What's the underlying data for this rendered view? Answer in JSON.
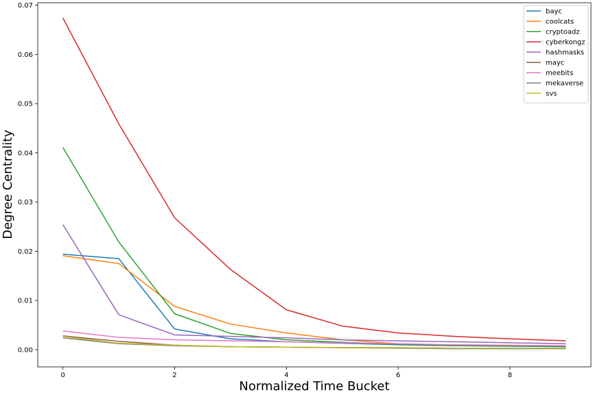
{
  "chart_data": {
    "type": "line",
    "xlabel": "Normalized Time Bucket",
    "ylabel": "Degree Centrality",
    "xlim": [
      -0.45,
      9.45
    ],
    "ylim": [
      -0.0035,
      0.0705
    ],
    "xticks": [
      0,
      2,
      4,
      6,
      8
    ],
    "xtick_labels": [
      "0",
      "2",
      "4",
      "6",
      "8"
    ],
    "yticks": [
      0.0,
      0.01,
      0.02,
      0.03,
      0.04,
      0.05,
      0.06,
      0.07
    ],
    "ytick_labels": [
      "0.00",
      "0.01",
      "0.02",
      "0.03",
      "0.04",
      "0.05",
      "0.06",
      "0.07"
    ],
    "grid": false,
    "legend_position": "top-right",
    "x": [
      0,
      1,
      2,
      3,
      4,
      5,
      6,
      7,
      8,
      9
    ],
    "series": [
      {
        "name": "bayc",
        "color": "#1f77b4",
        "values": [
          0.0194,
          0.0185,
          0.0042,
          0.0022,
          0.0016,
          0.0013,
          0.001,
          0.0008,
          0.0007,
          0.0006
        ]
      },
      {
        "name": "coolcats",
        "color": "#ff7f0e",
        "values": [
          0.0191,
          0.0175,
          0.0088,
          0.0052,
          0.0034,
          0.002,
          0.0012,
          0.0009,
          0.0008,
          0.0007
        ]
      },
      {
        "name": "cryptoadz",
        "color": "#2ca02c",
        "values": [
          0.0411,
          0.0219,
          0.0073,
          0.0033,
          0.002,
          0.0015,
          0.0011,
          0.0009,
          0.0008,
          0.0007
        ]
      },
      {
        "name": "cyberkongz",
        "color": "#d62728",
        "values": [
          0.0674,
          0.0459,
          0.0268,
          0.0163,
          0.0081,
          0.0048,
          0.0034,
          0.0027,
          0.0022,
          0.0018
        ]
      },
      {
        "name": "hashmasks",
        "color": "#9467bd",
        "values": [
          0.0254,
          0.0071,
          0.003,
          0.0027,
          0.0024,
          0.002,
          0.0018,
          0.0016,
          0.0014,
          0.0012
        ]
      },
      {
        "name": "mayc",
        "color": "#8c564b",
        "values": [
          0.0028,
          0.0017,
          0.0009,
          0.0006,
          0.0005,
          0.0004,
          0.0004,
          0.0003,
          0.0003,
          0.0003
        ]
      },
      {
        "name": "meebits",
        "color": "#e377c2",
        "values": [
          0.0038,
          0.0025,
          0.002,
          0.0018,
          0.0016,
          0.0014,
          0.0012,
          0.001,
          0.0009,
          0.0008
        ]
      },
      {
        "name": "mekaverse",
        "color": "#7f7f7f",
        "values": [
          0.0024,
          0.0012,
          0.0008,
          0.0006,
          0.0005,
          0.0004,
          0.0003,
          0.0002,
          0.0002,
          0.0002
        ]
      },
      {
        "name": "svs",
        "color": "#bcbd22",
        "values": [
          0.0027,
          0.0013,
          0.0009,
          0.0006,
          0.0005,
          0.0004,
          0.0004,
          0.0003,
          0.0003,
          0.0003
        ]
      }
    ]
  }
}
